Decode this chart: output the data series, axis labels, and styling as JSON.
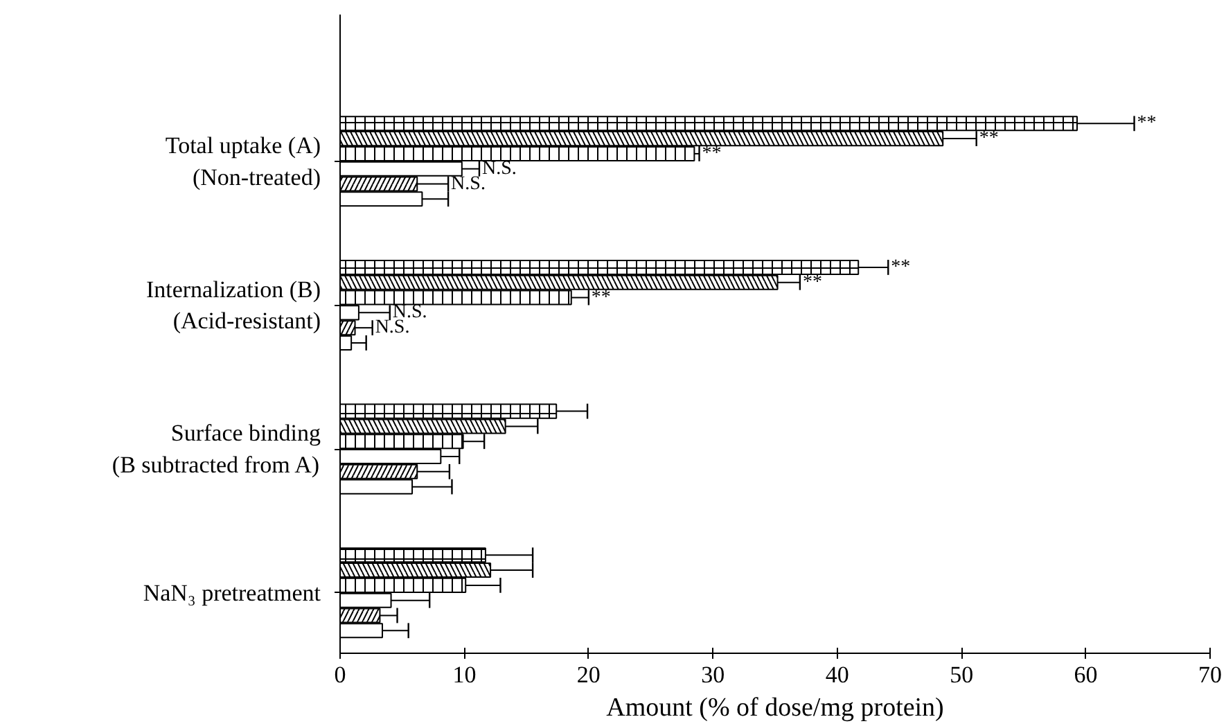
{
  "chart_data": {
    "type": "bar",
    "orientation": "horizontal",
    "xlabel": "Amount (% of dose/mg protein)",
    "categories": [
      "Total uptake (A)\n(Non-treated)",
      "Internalization (B)\n(Acid-resistant)",
      "Surface binding\n(B subtracted from A)",
      "NaN₃ pretreatment"
    ],
    "xlim": [
      0,
      70
    ],
    "xticks": [
      0,
      10,
      20,
      30,
      40,
      50,
      60,
      70
    ],
    "grid": false,
    "series": [
      {
        "color": "#000000",
        "values": [
          59.3,
          41.7,
          17.4,
          11.7
        ],
        "errors": [
          [
            59.3,
            63.9
          ],
          [
            41.7,
            44.1
          ],
          [
            17.4,
            19.9
          ],
          [
            11.7,
            15.5
          ]
        ],
        "value_labels": [
          "**",
          "**",
          null,
          null
        ]
      },
      {
        "color": "#000000",
        "values": [
          48.5,
          35.2,
          13.3,
          12.1
        ],
        "errors": [
          [
            48.5,
            51.2
          ],
          [
            35.2,
            37.0
          ],
          [
            13.3,
            15.9
          ],
          [
            12.1,
            15.5
          ]
        ],
        "value_labels": [
          "**",
          "**",
          null,
          null
        ]
      },
      {
        "color": "#000000",
        "values": [
          28.5,
          18.6,
          9.9,
          10.1
        ],
        "errors": [
          [
            28.5,
            28.9
          ],
          [
            18.6,
            20.0
          ],
          [
            9.9,
            11.6
          ],
          [
            10.1,
            12.9
          ]
        ],
        "value_labels": [
          "**",
          "**",
          null,
          null
        ]
      },
      {
        "color": "#000000",
        "values": [
          9.8,
          1.5,
          8.1,
          4.1
        ],
        "errors": [
          [
            9.8,
            11.2
          ],
          [
            1.5,
            4.0
          ],
          [
            8.1,
            9.6
          ],
          [
            4.1,
            7.2
          ]
        ],
        "value_labels": [
          "N.S.",
          "N.S.",
          null,
          null
        ]
      },
      {
        "color": "#000000",
        "values": [
          6.2,
          1.2,
          6.2,
          3.2
        ],
        "errors": [
          [
            6.2,
            8.7
          ],
          [
            1.2,
            2.6
          ],
          [
            6.2,
            8.8
          ],
          [
            3.2,
            4.6
          ]
        ],
        "value_labels": [
          "N.S.",
          "N.S.",
          null,
          null
        ]
      },
      {
        "color": "#000000",
        "values": [
          6.6,
          0.9,
          5.8,
          3.4
        ],
        "errors": [
          [
            6.6,
            8.7
          ],
          [
            0.9,
            2.1
          ],
          [
            5.8,
            9.0
          ],
          [
            3.4,
            5.5
          ]
        ]
      }
    ]
  }
}
